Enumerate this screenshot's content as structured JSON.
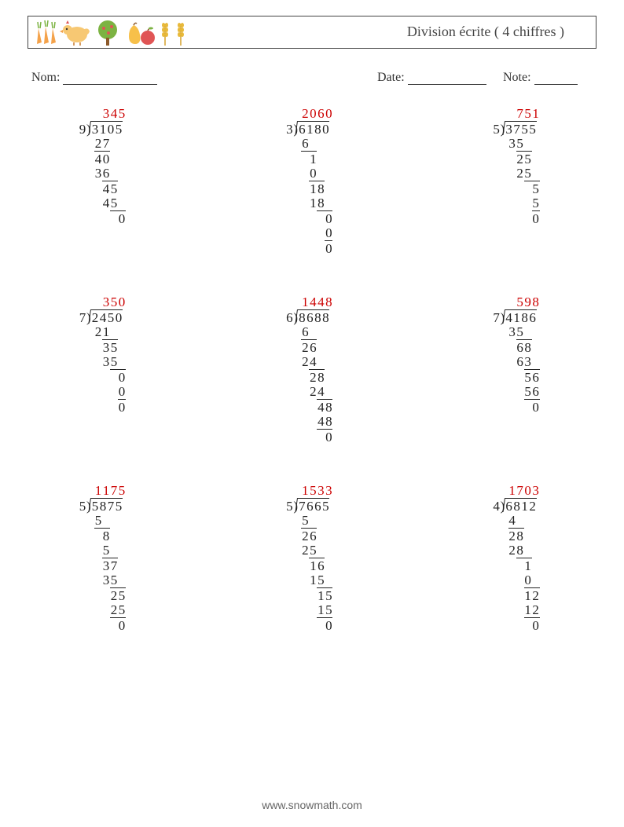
{
  "header": {
    "title": "Division écrite ( 4 chiffres )"
  },
  "labels": {
    "nom": "Nom:",
    "date": "Date:",
    "note": "Note:"
  },
  "footer": "www.snowmath.com",
  "colors": {
    "quotient": "#cc0000",
    "text": "#222222",
    "border": "#444444"
  },
  "problems": [
    {
      "divisor": 9,
      "dividend": "3105",
      "quotient": "345",
      "steps": [
        {
          "indent": 0,
          "val": "27",
          "line_after": true
        },
        {
          "indent": 0,
          "val": "40"
        },
        {
          "indent": 0,
          "val": "36",
          "line_after": true
        },
        {
          "indent": 1,
          "val": "45"
        },
        {
          "indent": 1,
          "val": "45",
          "line_after": true
        },
        {
          "indent": 3,
          "val": "0"
        }
      ]
    },
    {
      "divisor": 3,
      "dividend": "6180",
      "quotient": "2060",
      "steps": [
        {
          "indent": 0,
          "val": "6",
          "line_after": true,
          "line_width": 2
        },
        {
          "indent": 1,
          "val": "1"
        },
        {
          "indent": 1,
          "val": "0",
          "line_after": true
        },
        {
          "indent": 1,
          "val": "18"
        },
        {
          "indent": 1,
          "val": "18",
          "line_after": true
        },
        {
          "indent": 3,
          "val": "0"
        },
        {
          "indent": 3,
          "val": "0",
          "line_after": true
        },
        {
          "indent": 3,
          "val": "0"
        }
      ]
    },
    {
      "divisor": 5,
      "dividend": "3755",
      "quotient": "751",
      "steps": [
        {
          "indent": 0,
          "val": "35",
          "line_after": true
        },
        {
          "indent": 1,
          "val": "25"
        },
        {
          "indent": 1,
          "val": "25",
          "line_after": true
        },
        {
          "indent": 3,
          "val": "5"
        },
        {
          "indent": 3,
          "val": "5",
          "line_after": true
        },
        {
          "indent": 3,
          "val": "0"
        }
      ]
    },
    {
      "divisor": 7,
      "dividend": "2450",
      "quotient": "350",
      "steps": [
        {
          "indent": 0,
          "val": "21",
          "line_after": true
        },
        {
          "indent": 1,
          "val": "35"
        },
        {
          "indent": 1,
          "val": "35",
          "line_after": true
        },
        {
          "indent": 3,
          "val": "0"
        },
        {
          "indent": 3,
          "val": "0",
          "line_after": true
        },
        {
          "indent": 3,
          "val": "0"
        }
      ]
    },
    {
      "divisor": 6,
      "dividend": "8688",
      "quotient": "1448",
      "steps": [
        {
          "indent": 0,
          "val": "6",
          "line_after": true,
          "line_width": 2
        },
        {
          "indent": 0,
          "val": "26"
        },
        {
          "indent": 0,
          "val": "24",
          "line_after": true
        },
        {
          "indent": 1,
          "val": "28"
        },
        {
          "indent": 1,
          "val": "24",
          "line_after": true
        },
        {
          "indent": 2,
          "val": "48"
        },
        {
          "indent": 2,
          "val": "48",
          "line_after": true
        },
        {
          "indent": 3,
          "val": "0"
        }
      ]
    },
    {
      "divisor": 7,
      "dividend": "4186",
      "quotient": "598",
      "steps": [
        {
          "indent": 0,
          "val": "35",
          "line_after": true
        },
        {
          "indent": 1,
          "val": "68"
        },
        {
          "indent": 1,
          "val": "63",
          "line_after": true
        },
        {
          "indent": 2,
          "val": "56"
        },
        {
          "indent": 2,
          "val": "56",
          "line_after": true
        },
        {
          "indent": 3,
          "val": "0"
        }
      ]
    },
    {
      "divisor": 5,
      "dividend": "5875",
      "quotient": "1175",
      "steps": [
        {
          "indent": 0,
          "val": "5",
          "line_after": true,
          "line_width": 2
        },
        {
          "indent": 1,
          "val": "8"
        },
        {
          "indent": 1,
          "val": "5",
          "line_after": true,
          "line_width": 2
        },
        {
          "indent": 1,
          "val": "37"
        },
        {
          "indent": 1,
          "val": "35",
          "line_after": true
        },
        {
          "indent": 2,
          "val": "25"
        },
        {
          "indent": 2,
          "val": "25",
          "line_after": true
        },
        {
          "indent": 3,
          "val": "0"
        }
      ]
    },
    {
      "divisor": 5,
      "dividend": "7665",
      "quotient": "1533",
      "steps": [
        {
          "indent": 0,
          "val": "5",
          "line_after": true,
          "line_width": 2
        },
        {
          "indent": 0,
          "val": "26"
        },
        {
          "indent": 0,
          "val": "25",
          "line_after": true
        },
        {
          "indent": 1,
          "val": "16"
        },
        {
          "indent": 1,
          "val": "15",
          "line_after": true
        },
        {
          "indent": 2,
          "val": "15"
        },
        {
          "indent": 2,
          "val": "15",
          "line_after": true
        },
        {
          "indent": 3,
          "val": "0"
        }
      ]
    },
    {
      "divisor": 4,
      "dividend": "6812",
      "quotient": "1703",
      "steps": [
        {
          "indent": 0,
          "val": "4",
          "line_after": true,
          "line_width": 2
        },
        {
          "indent": 0,
          "val": "28"
        },
        {
          "indent": 0,
          "val": "28",
          "line_after": true
        },
        {
          "indent": 2,
          "val": "1"
        },
        {
          "indent": 2,
          "val": "0",
          "line_after": true
        },
        {
          "indent": 2,
          "val": "12"
        },
        {
          "indent": 2,
          "val": "12",
          "line_after": true
        },
        {
          "indent": 3,
          "val": "0"
        }
      ]
    }
  ]
}
